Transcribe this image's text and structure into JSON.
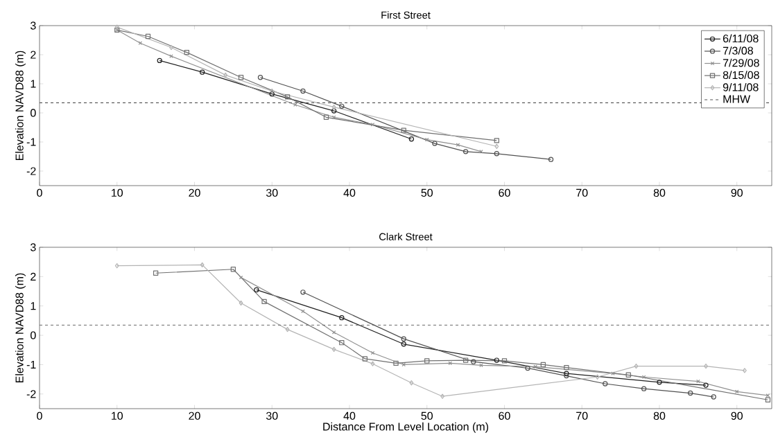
{
  "chart_data": [
    {
      "type": "line",
      "title": "First Street",
      "ylabel": "Elevation NAVD88 (m)",
      "xlim": [
        0,
        94.5
      ],
      "ylim": [
        -2.5,
        3
      ],
      "xticks": [
        0,
        10,
        20,
        30,
        40,
        50,
        60,
        70,
        80,
        90
      ],
      "yticks": [
        -2,
        -1,
        0,
        1,
        2,
        3
      ],
      "legend": "top right",
      "line_style": "solid",
      "series": [
        {
          "name": "6/11/08",
          "color": "#202020",
          "marker": "circle",
          "x": [
            15.5,
            21,
            30,
            38,
            48
          ],
          "values": [
            1.8,
            1.4,
            0.65,
            0.07,
            -0.9
          ]
        },
        {
          "name": "7/3/08",
          "color": "#505050",
          "marker": "circle",
          "x": [
            28.5,
            34,
            39,
            51,
            55,
            59,
            66
          ],
          "values": [
            1.22,
            0.75,
            0.23,
            -1.05,
            -1.33,
            -1.4,
            -1.6
          ]
        },
        {
          "name": "7/29/08",
          "color": "#909090",
          "marker": "cross",
          "x": [
            10,
            13,
            17,
            33,
            38,
            43,
            50,
            54,
            57
          ],
          "values": [
            2.85,
            2.4,
            1.95,
            0.28,
            -0.15,
            -0.4,
            -0.92,
            -1.1,
            -1.33
          ]
        },
        {
          "name": "8/15/08",
          "color": "#707070",
          "marker": "square",
          "x": [
            10,
            14,
            19,
            26,
            32,
            37,
            47,
            59
          ],
          "values": [
            2.85,
            2.63,
            2.08,
            1.22,
            0.55,
            -0.15,
            -0.6,
            -0.95
          ]
        },
        {
          "name": "9/11/08",
          "color": "#b4b4b4",
          "marker": "diamond",
          "x": [
            10,
            17,
            24,
            30,
            38,
            59
          ],
          "values": [
            2.95,
            2.25,
            1.3,
            0.75,
            0.2,
            -1.15
          ]
        }
      ],
      "ref_lines": [
        {
          "axis": "y",
          "value": 0.35,
          "label": "MHW",
          "color": "#555555",
          "line_style": "dashed"
        }
      ]
    },
    {
      "type": "line",
      "title": "Clark Street",
      "xlabel": "Distance From Level Location (m)",
      "ylabel": "Elevation NAVD88 (m)",
      "xlim": [
        0,
        94.5
      ],
      "ylim": [
        -2.5,
        3
      ],
      "xticks": [
        0,
        10,
        20,
        30,
        40,
        50,
        60,
        70,
        80,
        90
      ],
      "yticks": [
        -2,
        -1,
        0,
        1,
        2,
        3
      ],
      "legend": false,
      "line_style": "solid",
      "series": [
        {
          "color": "#202020",
          "marker": "circle",
          "x": [
            28,
            39,
            47,
            59,
            68,
            80,
            86
          ],
          "values": [
            1.55,
            0.6,
            -0.3,
            -0.85,
            -1.3,
            -1.6,
            -1.7
          ]
        },
        {
          "color": "#505050",
          "marker": "circle",
          "x": [
            34,
            47,
            56,
            63,
            68,
            73,
            78,
            84,
            87
          ],
          "values": [
            1.47,
            -0.12,
            -0.9,
            -1.12,
            -1.38,
            -1.65,
            -1.82,
            -1.97,
            -2.1
          ]
        },
        {
          "color": "#909090",
          "marker": "cross",
          "x": [
            26,
            34,
            38,
            43,
            47,
            53,
            57,
            64,
            74,
            78,
            85,
            90,
            94
          ],
          "values": [
            1.97,
            0.82,
            0.1,
            -0.6,
            -1.0,
            -0.95,
            -1.02,
            -1.07,
            -1.3,
            -1.42,
            -1.57,
            -1.92,
            -2.05
          ]
        },
        {
          "color": "#707070",
          "marker": "square",
          "x": [
            15,
            25,
            29,
            39,
            42,
            46,
            50,
            55,
            60,
            65,
            68,
            76,
            94
          ],
          "values": [
            2.12,
            2.25,
            1.15,
            -0.25,
            -0.8,
            -0.95,
            -0.87,
            -0.85,
            -0.87,
            -1.0,
            -1.1,
            -1.35,
            -2.2
          ]
        },
        {
          "color": "#b4b4b4",
          "marker": "diamond",
          "x": [
            10,
            21,
            26,
            32,
            38,
            43,
            48,
            52,
            72,
            77,
            86,
            91
          ],
          "values": [
            2.37,
            2.4,
            1.1,
            0.2,
            -0.48,
            -0.97,
            -1.62,
            -2.08,
            -1.42,
            -1.05,
            -1.05,
            -1.2
          ]
        }
      ],
      "ref_lines": [
        {
          "axis": "y",
          "value": 0.35,
          "color": "#555555",
          "line_style": "dashed"
        }
      ]
    }
  ]
}
